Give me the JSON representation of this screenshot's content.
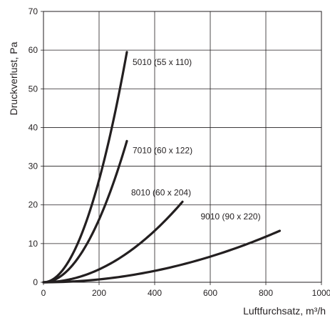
{
  "chart_data": {
    "type": "line",
    "xlabel": "Luftfurchsatz, m³/h",
    "ylabel": "Druckverlust, Pa",
    "xlim": [
      0,
      1000
    ],
    "ylim": [
      0,
      70
    ],
    "x_ticks": [
      0,
      200,
      400,
      600,
      800,
      1000
    ],
    "y_ticks": [
      0,
      10,
      20,
      30,
      40,
      50,
      60,
      70
    ],
    "grid": true,
    "series": [
      {
        "name": "5010 (55 x 110)",
        "x_max": 300,
        "y_max": 59.5,
        "color": "#231f20"
      },
      {
        "name": "7010 (60 x 122)",
        "x_max": 300,
        "y_max": 36.5,
        "color": "#231f20"
      },
      {
        "name": "8010 (60 x 204)",
        "x_max": 500,
        "y_max": 20.8,
        "color": "#231f20"
      },
      {
        "name": "9010 (90 x 220)",
        "x_max": 850,
        "y_max": 13.3,
        "color": "#231f20"
      }
    ]
  }
}
